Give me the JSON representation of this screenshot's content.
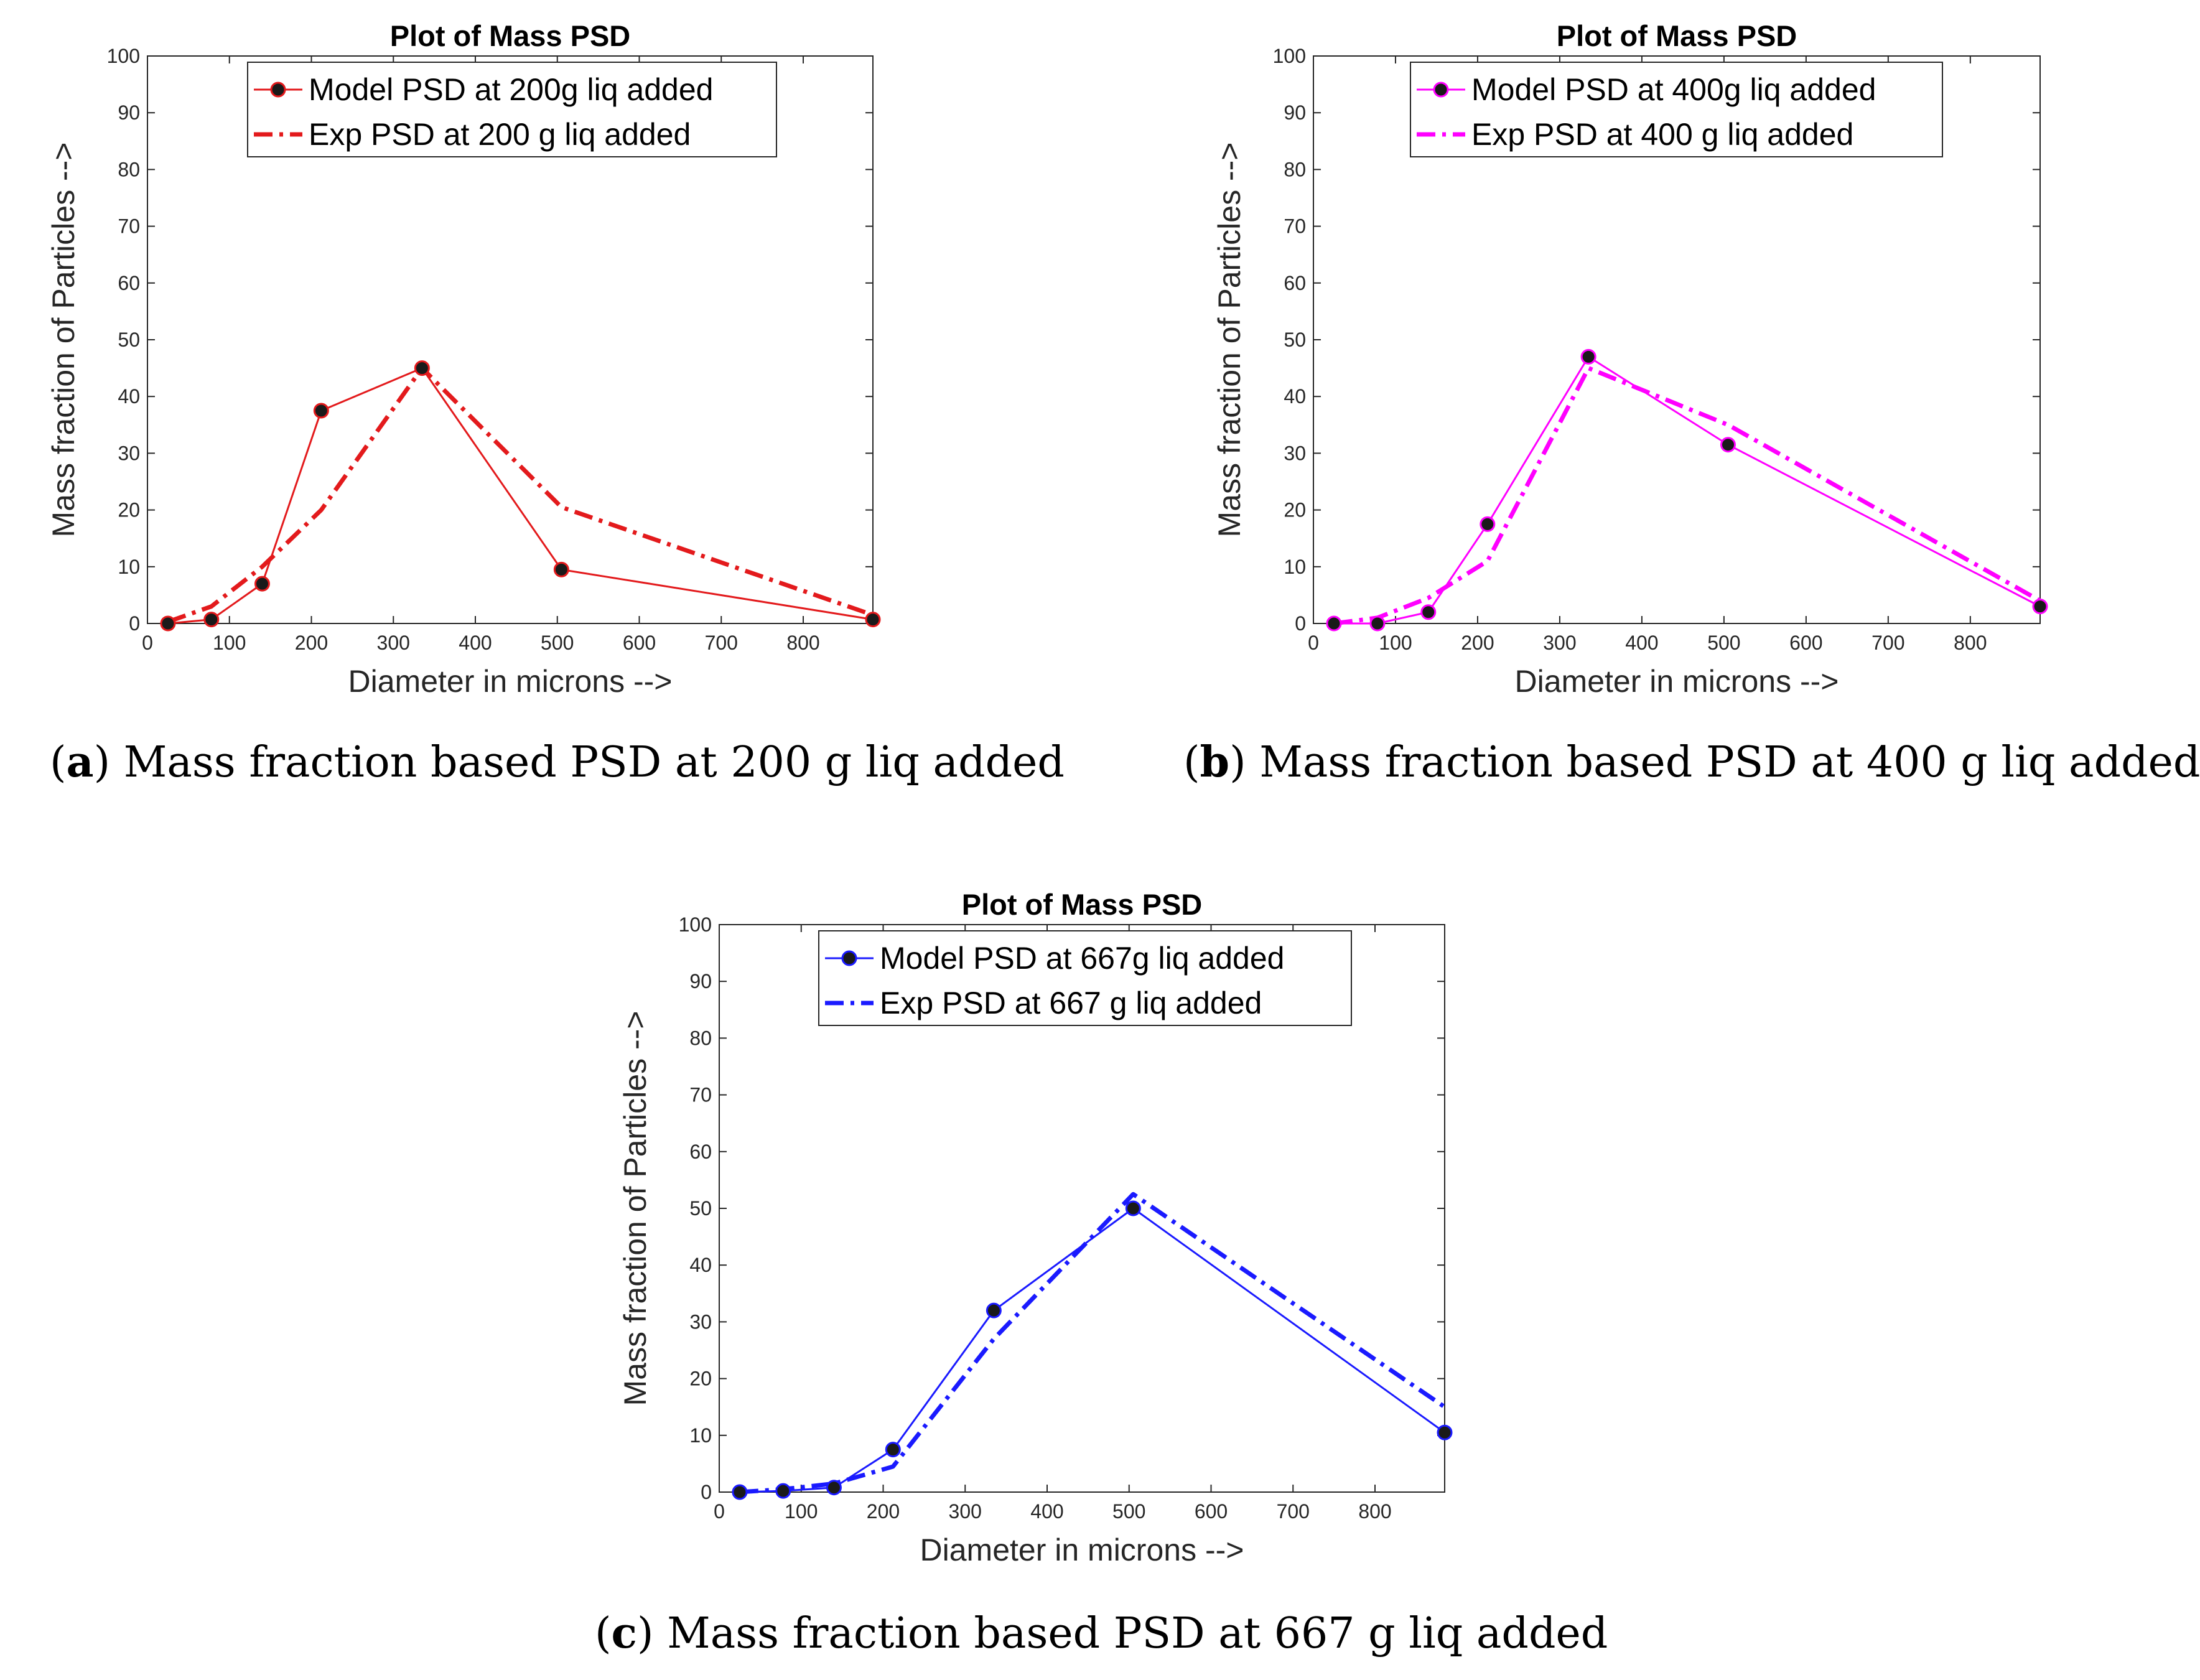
{
  "chart_data": [
    {
      "type": "line",
      "title": "Plot of Mass PSD",
      "xlabel": "Diameter in microns -->",
      "ylabel": "Mass fraction of Particles -->",
      "xlim": [
        0,
        885
      ],
      "ylim": [
        0,
        100
      ],
      "xticks": [
        0,
        100,
        200,
        300,
        400,
        500,
        600,
        700,
        800
      ],
      "yticks": [
        0,
        10,
        20,
        30,
        40,
        50,
        60,
        70,
        80,
        90,
        100
      ],
      "legend_position": "top-center",
      "caption_label": "a",
      "caption_text": ") Mass fraction based PSD at 200 g liq added",
      "colors": {
        "model": "#e31a1c",
        "exp": "#e31a1c"
      },
      "series": [
        {
          "name": "Model PSD at 200g liq added",
          "style": "solid-marker",
          "x": [
            25,
            78,
            140,
            212,
            335,
            505,
            885
          ],
          "y": [
            0,
            0.7,
            7,
            37.5,
            45,
            9.5,
            0.7
          ]
        },
        {
          "name": "Exp PSD at 200 g liq added",
          "style": "dashdot",
          "x": [
            25,
            78,
            140,
            212,
            335,
            505,
            885
          ],
          "y": [
            0.3,
            3,
            10,
            20,
            45,
            20.5,
            1.5
          ]
        }
      ]
    },
    {
      "type": "line",
      "title": "Plot of Mass PSD",
      "xlabel": "Diameter in microns -->",
      "ylabel": "Mass fraction of Particles -->",
      "xlim": [
        0,
        885
      ],
      "ylim": [
        0,
        100
      ],
      "xticks": [
        0,
        100,
        200,
        300,
        400,
        500,
        600,
        700,
        800
      ],
      "yticks": [
        0,
        10,
        20,
        30,
        40,
        50,
        60,
        70,
        80,
        90,
        100
      ],
      "legend_position": "top-center",
      "caption_label": "b",
      "caption_text": ") Mass fraction based PSD at 400 g liq added",
      "colors": {
        "model": "#ff00ff",
        "exp": "#ff00ff"
      },
      "series": [
        {
          "name": "Model PSD at 400g liq added",
          "style": "solid-marker",
          "x": [
            25,
            78,
            140,
            212,
            335,
            505,
            885
          ],
          "y": [
            0,
            0,
            2,
            17.5,
            47,
            31.5,
            3
          ]
        },
        {
          "name": "Exp PSD at 400 g liq added",
          "style": "dashdot",
          "x": [
            25,
            78,
            140,
            212,
            335,
            505,
            885
          ],
          "y": [
            0,
            1,
            4.5,
            11,
            45,
            35,
            4
          ]
        }
      ]
    },
    {
      "type": "line",
      "title": "Plot of Mass PSD",
      "xlabel": "Diameter in microns -->",
      "ylabel": "Mass fraction of Particles -->",
      "xlim": [
        0,
        885
      ],
      "ylim": [
        0,
        100
      ],
      "xticks": [
        0,
        100,
        200,
        300,
        400,
        500,
        600,
        700,
        800
      ],
      "yticks": [
        0,
        10,
        20,
        30,
        40,
        50,
        60,
        70,
        80,
        90,
        100
      ],
      "legend_position": "top-center",
      "caption_label": "c",
      "caption_text": ") Mass fraction based PSD at 667 g liq added",
      "colors": {
        "model": "#1a1aff",
        "exp": "#1a1aff"
      },
      "series": [
        {
          "name": "Model PSD at 667g liq added",
          "style": "solid-marker",
          "x": [
            25,
            78,
            140,
            212,
            335,
            505,
            885
          ],
          "y": [
            0,
            0.2,
            0.8,
            7.5,
            32,
            50,
            10.5
          ]
        },
        {
          "name": "Exp PSD at 667 g liq added",
          "style": "dashdot",
          "x": [
            25,
            78,
            140,
            212,
            335,
            505,
            885
          ],
          "y": [
            0,
            0.5,
            1.5,
            4.5,
            27,
            52.5,
            15
          ]
        }
      ]
    }
  ]
}
